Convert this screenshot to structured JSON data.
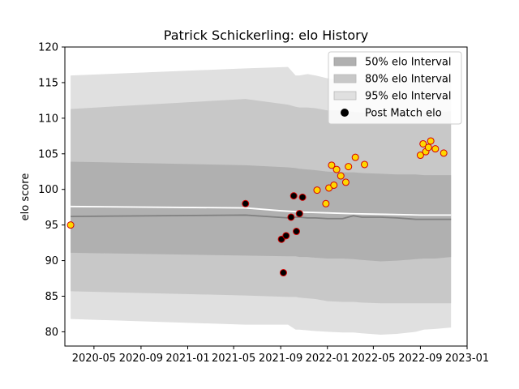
{
  "chart_data": {
    "type": "line",
    "title": "Patrick Schickerling: elo History",
    "xlabel": "",
    "ylabel": "elo score",
    "xlim": [
      "2020-02-15",
      "2023-01-01"
    ],
    "ylim": [
      78,
      120
    ],
    "x_ticks": [
      "2020-05",
      "2020-09",
      "2021-01",
      "2021-05",
      "2021-09",
      "2022-01",
      "2022-05",
      "2022-09",
      "2023-01"
    ],
    "y_ticks": [
      80,
      85,
      90,
      95,
      100,
      105,
      110,
      115,
      120
    ],
    "grid": false,
    "legend_position": "top-right",
    "legend": [
      {
        "label": "50% elo Interval",
        "kind": "band",
        "color": "#b0b0b0"
      },
      {
        "label": "80% elo Interval",
        "kind": "band",
        "color": "#c8c8c8"
      },
      {
        "label": "95% elo Interval",
        "kind": "band",
        "color": "#e0e0e0"
      },
      {
        "label": "Post Match elo",
        "kind": "marker",
        "color": "#000000"
      }
    ],
    "colors": {
      "band_50": "#b0b0b0",
      "band_80": "#c8c8c8",
      "band_95": "#e0e0e0",
      "median_line": "#808080",
      "mean_line": "#ffffff",
      "marker_fill_gold": "#ffd700",
      "marker_fill_black": "#000000",
      "marker_edge": "#d40000"
    },
    "bands": {
      "x": [
        "2020-03-01",
        "2021-06-01",
        "2021-09-20",
        "2021-10-10",
        "2021-10-20",
        "2021-11-10",
        "2021-12-01",
        "2022-01-01",
        "2022-02-10",
        "2022-03-10",
        "2022-04-01",
        "2022-05-20",
        "2022-07-01",
        "2022-08-20",
        "2022-09-10",
        "2022-10-10",
        "2022-11-20"
      ],
      "p95_upper": [
        116.0,
        117.0,
        117.2,
        116.0,
        116.0,
        116.2,
        116.0,
        115.6,
        115.4,
        115.4,
        115.3,
        115.4,
        115.6,
        115.8,
        115.9,
        116.0,
        116.3
      ],
      "p80_upper": [
        111.3,
        112.7,
        111.9,
        111.6,
        111.5,
        111.5,
        111.4,
        111.1,
        111.1,
        110.9,
        110.8,
        110.7,
        110.6,
        110.7,
        110.8,
        110.8,
        111.0
      ],
      "p50_upper": [
        103.9,
        103.4,
        103.1,
        103.0,
        102.9,
        102.8,
        102.7,
        102.5,
        102.4,
        102.4,
        102.3,
        102.2,
        102.1,
        102.1,
        102.0,
        102.0,
        102.0
      ],
      "median": [
        96.2,
        96.4,
        96.0,
        96.1,
        96.1,
        96.0,
        96.0,
        95.9,
        95.9,
        96.3,
        96.1,
        96.1,
        96.0,
        95.8,
        95.8,
        95.8,
        95.8
      ],
      "p50_lower": [
        91.1,
        90.7,
        90.6,
        90.6,
        90.5,
        90.5,
        90.4,
        90.3,
        90.3,
        90.2,
        90.1,
        89.9,
        90.0,
        90.2,
        90.3,
        90.3,
        90.5
      ],
      "p80_lower": [
        85.7,
        85.1,
        84.9,
        84.9,
        84.8,
        84.7,
        84.6,
        84.3,
        84.2,
        84.2,
        84.1,
        84.0,
        84.0,
        84.0,
        84.0,
        84.0,
        84.0
      ],
      "p95_lower": [
        81.8,
        81.0,
        81.0,
        80.3,
        80.3,
        80.2,
        80.1,
        80.0,
        79.9,
        79.9,
        79.8,
        79.6,
        79.7,
        80.0,
        80.3,
        80.4,
        80.6
      ]
    },
    "mean_line": {
      "x": [
        "2020-03-01",
        "2021-06-01",
        "2021-09-01",
        "2021-11-01",
        "2022-01-01",
        "2022-03-01",
        "2022-06-01",
        "2022-09-01",
        "2022-11-20"
      ],
      "y": [
        97.6,
        97.4,
        97.0,
        96.8,
        96.7,
        96.6,
        96.5,
        96.4,
        96.4
      ]
    },
    "points": [
      {
        "x": "2020-03-01",
        "y": 95.0,
        "fill": "gold"
      },
      {
        "x": "2021-06-01",
        "y": 98.0,
        "fill": "black"
      },
      {
        "x": "2021-09-03",
        "y": 93.0,
        "fill": "black"
      },
      {
        "x": "2021-09-08",
        "y": 88.3,
        "fill": "black"
      },
      {
        "x": "2021-09-15",
        "y": 93.5,
        "fill": "black"
      },
      {
        "x": "2021-09-28",
        "y": 96.1,
        "fill": "black"
      },
      {
        "x": "2021-10-05",
        "y": 99.1,
        "fill": "black"
      },
      {
        "x": "2021-10-12",
        "y": 94.1,
        "fill": "black"
      },
      {
        "x": "2021-10-20",
        "y": 96.6,
        "fill": "black"
      },
      {
        "x": "2021-10-28",
        "y": 98.9,
        "fill": "black"
      },
      {
        "x": "2021-12-05",
        "y": 99.9,
        "fill": "gold"
      },
      {
        "x": "2021-12-28",
        "y": 98.0,
        "fill": "gold"
      },
      {
        "x": "2022-01-05",
        "y": 100.2,
        "fill": "gold"
      },
      {
        "x": "2022-01-12",
        "y": 103.4,
        "fill": "gold"
      },
      {
        "x": "2022-01-18",
        "y": 100.6,
        "fill": "gold"
      },
      {
        "x": "2022-01-25",
        "y": 102.8,
        "fill": "gold"
      },
      {
        "x": "2022-02-05",
        "y": 101.9,
        "fill": "gold"
      },
      {
        "x": "2022-02-18",
        "y": 101.0,
        "fill": "gold"
      },
      {
        "x": "2022-02-25",
        "y": 103.2,
        "fill": "gold"
      },
      {
        "x": "2022-03-15",
        "y": 104.5,
        "fill": "gold"
      },
      {
        "x": "2022-04-08",
        "y": 103.5,
        "fill": "gold"
      },
      {
        "x": "2022-09-01",
        "y": 104.8,
        "fill": "gold"
      },
      {
        "x": "2022-09-08",
        "y": 106.4,
        "fill": "gold"
      },
      {
        "x": "2022-09-15",
        "y": 105.3,
        "fill": "gold"
      },
      {
        "x": "2022-09-22",
        "y": 105.9,
        "fill": "gold"
      },
      {
        "x": "2022-09-28",
        "y": 106.8,
        "fill": "gold"
      },
      {
        "x": "2022-10-10",
        "y": 105.7,
        "fill": "gold"
      },
      {
        "x": "2022-11-01",
        "y": 105.1,
        "fill": "gold"
      }
    ]
  }
}
